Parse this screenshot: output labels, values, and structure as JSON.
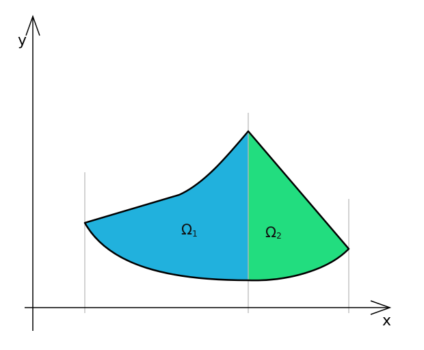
{
  "axes": {
    "x_label": "x",
    "y_label": "y"
  },
  "regions": [
    {
      "label": "Ω",
      "subscript": "1",
      "color": "#21b1dd"
    },
    {
      "label": "Ω",
      "subscript": "2",
      "color": "#22dd7f"
    }
  ],
  "colors": {
    "outline": "#000000",
    "guide_lines": "#bbbbbb",
    "axes": "#000000"
  }
}
